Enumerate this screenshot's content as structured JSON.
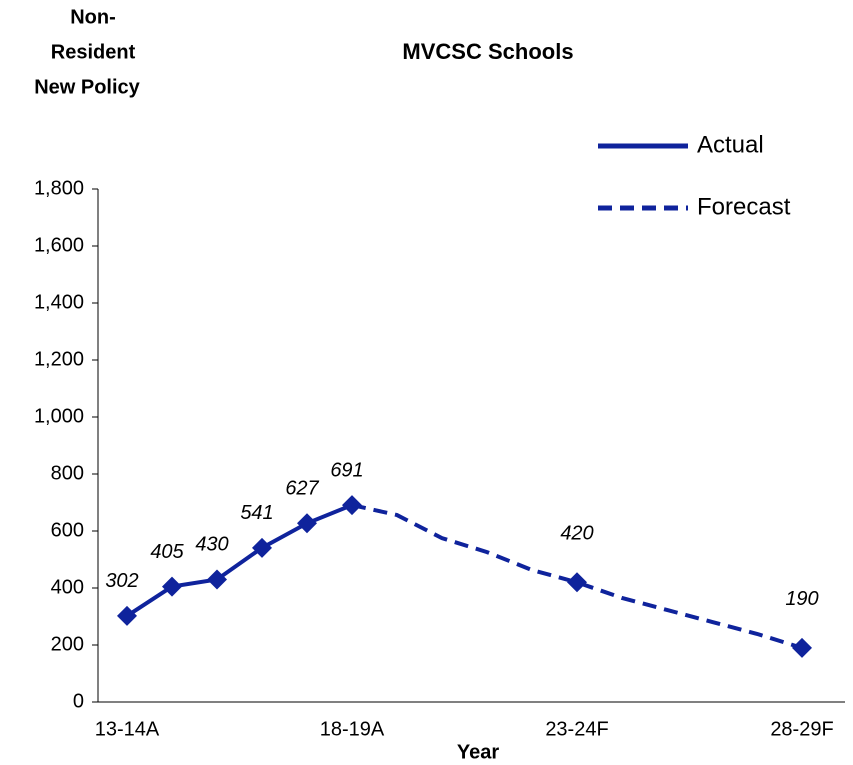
{
  "chart_data": {
    "type": "line",
    "title": "MVCSC Schools",
    "y_label": [
      "Non-",
      "Resident",
      "New Policy"
    ],
    "x_label": "Year",
    "categories": [
      "13-14A",
      null,
      null,
      null,
      null,
      "18-19A",
      null,
      null,
      null,
      null,
      "23-24F",
      null,
      null,
      null,
      null,
      "28-29F"
    ],
    "series": [
      {
        "name": "Actual",
        "color": "#0f239c",
        "style": "solid",
        "values": [
          302,
          405,
          430,
          541,
          627,
          691,
          null,
          null,
          null,
          null,
          null,
          null,
          null,
          null,
          null,
          null
        ]
      },
      {
        "name": "Forecast",
        "color": "#0f239c",
        "style": "dashed",
        "values": [
          null,
          null,
          null,
          null,
          null,
          691,
          656,
          575,
          526,
          463,
          420,
          365,
          323,
          281,
          239,
          190
        ],
        "value_labels": [
          null,
          null,
          null,
          null,
          null,
          null,
          null,
          null,
          null,
          null,
          "420",
          null,
          null,
          null,
          null,
          "190"
        ]
      }
    ],
    "ylim": [
      0,
      1800
    ],
    "yticks": [
      0,
      200,
      400,
      600,
      800,
      {
        "value": 1000,
        "label": "1,000"
      },
      {
        "value": 1200,
        "label": "1,200"
      },
      {
        "value": 1400,
        "label": "1,400"
      },
      {
        "value": 1600,
        "label": "1,600"
      },
      {
        "value": 1800,
        "label": "1,800"
      }
    ],
    "legend": "top-right"
  }
}
